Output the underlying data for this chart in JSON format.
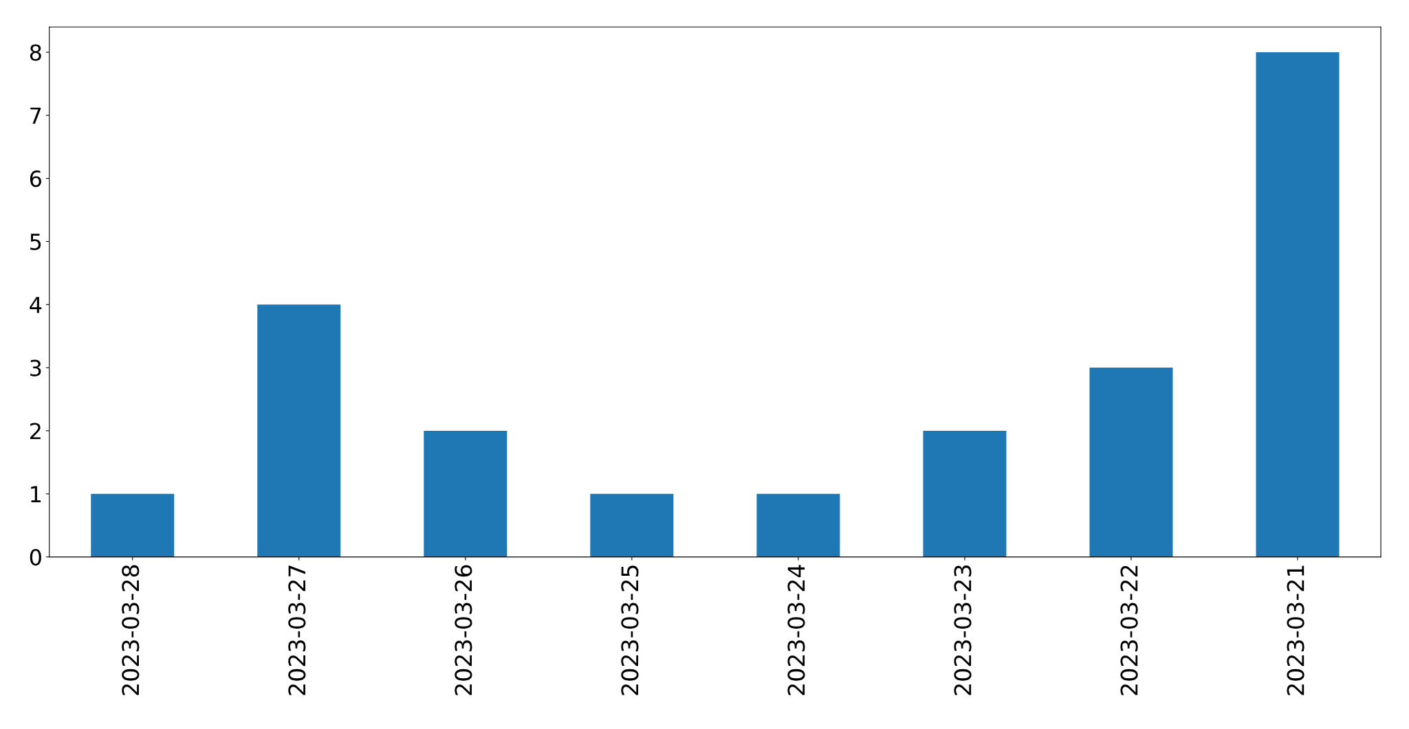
{
  "chart_data": {
    "type": "bar",
    "categories": [
      "2023-03-28",
      "2023-03-27",
      "2023-03-26",
      "2023-03-25",
      "2023-03-24",
      "2023-03-23",
      "2023-03-22",
      "2023-03-21"
    ],
    "values": [
      1,
      4,
      2,
      1,
      1,
      2,
      3,
      8
    ],
    "color": "#1f77b4",
    "ylim": [
      0,
      8.4
    ],
    "yticks": [
      0,
      1,
      2,
      3,
      4,
      5,
      6,
      7,
      8
    ],
    "grid": false
  }
}
